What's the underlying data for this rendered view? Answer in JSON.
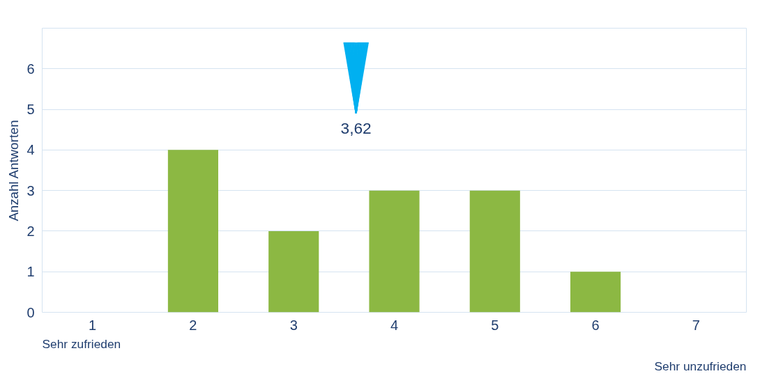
{
  "chart_data": {
    "type": "bar",
    "x": [
      1,
      2,
      3,
      4,
      5,
      6,
      7
    ],
    "values": [
      0,
      4,
      2,
      3,
      3,
      1,
      0
    ],
    "color": "#8cb843",
    "xlim": [
      0.5,
      7.5
    ],
    "xticks": [
      1,
      2,
      3,
      4,
      5,
      6,
      7
    ],
    "ylim": [
      0,
      7
    ],
    "yticks": [
      0,
      1,
      2,
      3,
      4,
      5,
      6
    ],
    "ylabel": "Anzahl Antworten",
    "grid": "y",
    "ref_lines": [
      {
        "axis": "x",
        "value": 3.62,
        "label": "3,62",
        "color": "#00b0f0"
      }
    ],
    "annotations": [
      "Sehr zufrieden",
      "Sehr unzufrieden"
    ]
  }
}
